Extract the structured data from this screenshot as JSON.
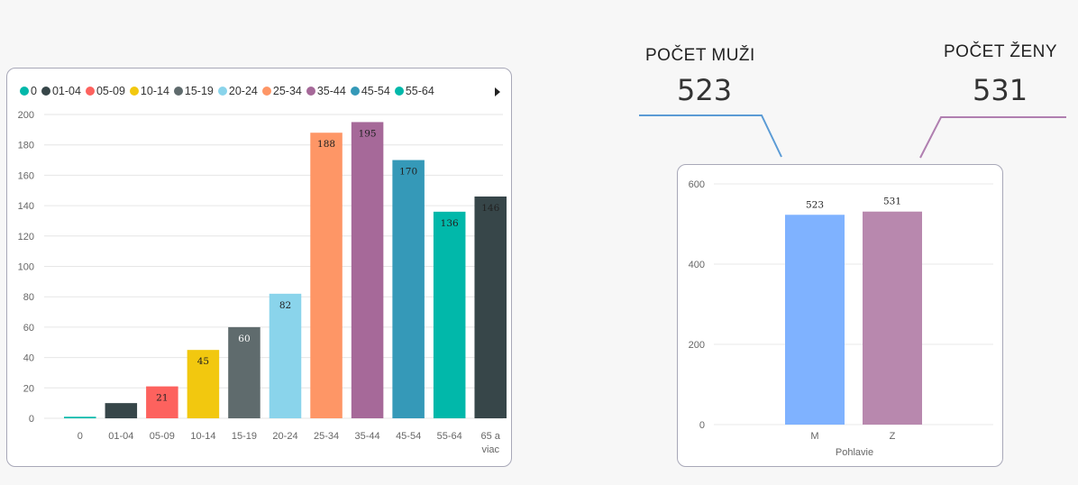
{
  "kpis": {
    "men": {
      "label": "POČET MUŽI",
      "value": "523",
      "color": "#5b9bd5"
    },
    "women": {
      "label": "POČET ŽENY",
      "value": "531",
      "color": "#b07fb0"
    }
  },
  "chart_data": [
    {
      "type": "bar",
      "title": "",
      "xlabel": "",
      "ylabel": "",
      "ylim": [
        0,
        200
      ],
      "yticks": [
        0,
        20,
        40,
        60,
        80,
        100,
        120,
        140,
        160,
        180,
        200
      ],
      "grid": true,
      "legend_position": "top-left",
      "categories": [
        "0",
        "01-04",
        "05-09",
        "10-14",
        "15-19",
        "20-24",
        "25-34",
        "35-44",
        "45-54",
        "55-64",
        "65 a viac"
      ],
      "category_lines": [
        [
          "0"
        ],
        [
          "01-04"
        ],
        [
          "05-09"
        ],
        [
          "10-14"
        ],
        [
          "15-19"
        ],
        [
          "20-24"
        ],
        [
          "25-34"
        ],
        [
          "35-44"
        ],
        [
          "45-54"
        ],
        [
          "55-64"
        ],
        [
          "65 a",
          "viac"
        ]
      ],
      "values": [
        1,
        10,
        21,
        45,
        60,
        82,
        188,
        195,
        170,
        136,
        146
      ],
      "data_labels": [
        "",
        "",
        "21",
        "45",
        "60",
        "82",
        "188",
        "195",
        "170",
        "136",
        "146"
      ],
      "label_colors": [
        "#222222",
        "#ffffff",
        "#222222",
        "#222222",
        "#ffffff",
        "#222222",
        "#222222",
        "#222222",
        "#222222",
        "#222222",
        "#222222"
      ],
      "colors": [
        "#01b8aa",
        "#374649",
        "#fd625e",
        "#f2c80f",
        "#5f6b6d",
        "#8ad4eb",
        "#fe9666",
        "#a66999",
        "#3599b8",
        "#01b8aa",
        "#374649"
      ],
      "legend": [
        "0",
        "01-04",
        "05-09",
        "10-14",
        "15-19",
        "20-24",
        "25-34",
        "35-44",
        "45-54",
        "55-64"
      ]
    },
    {
      "type": "bar",
      "title": "",
      "xlabel": "Pohlavie",
      "ylabel": "",
      "ylim": [
        0,
        600
      ],
      "yticks": [
        0,
        200,
        400,
        600
      ],
      "grid": true,
      "categories": [
        "M",
        "Z"
      ],
      "values": [
        523,
        531
      ],
      "data_labels": [
        "523",
        "531"
      ],
      "colors": [
        "#7fb2ff",
        "#b888ae"
      ]
    }
  ]
}
